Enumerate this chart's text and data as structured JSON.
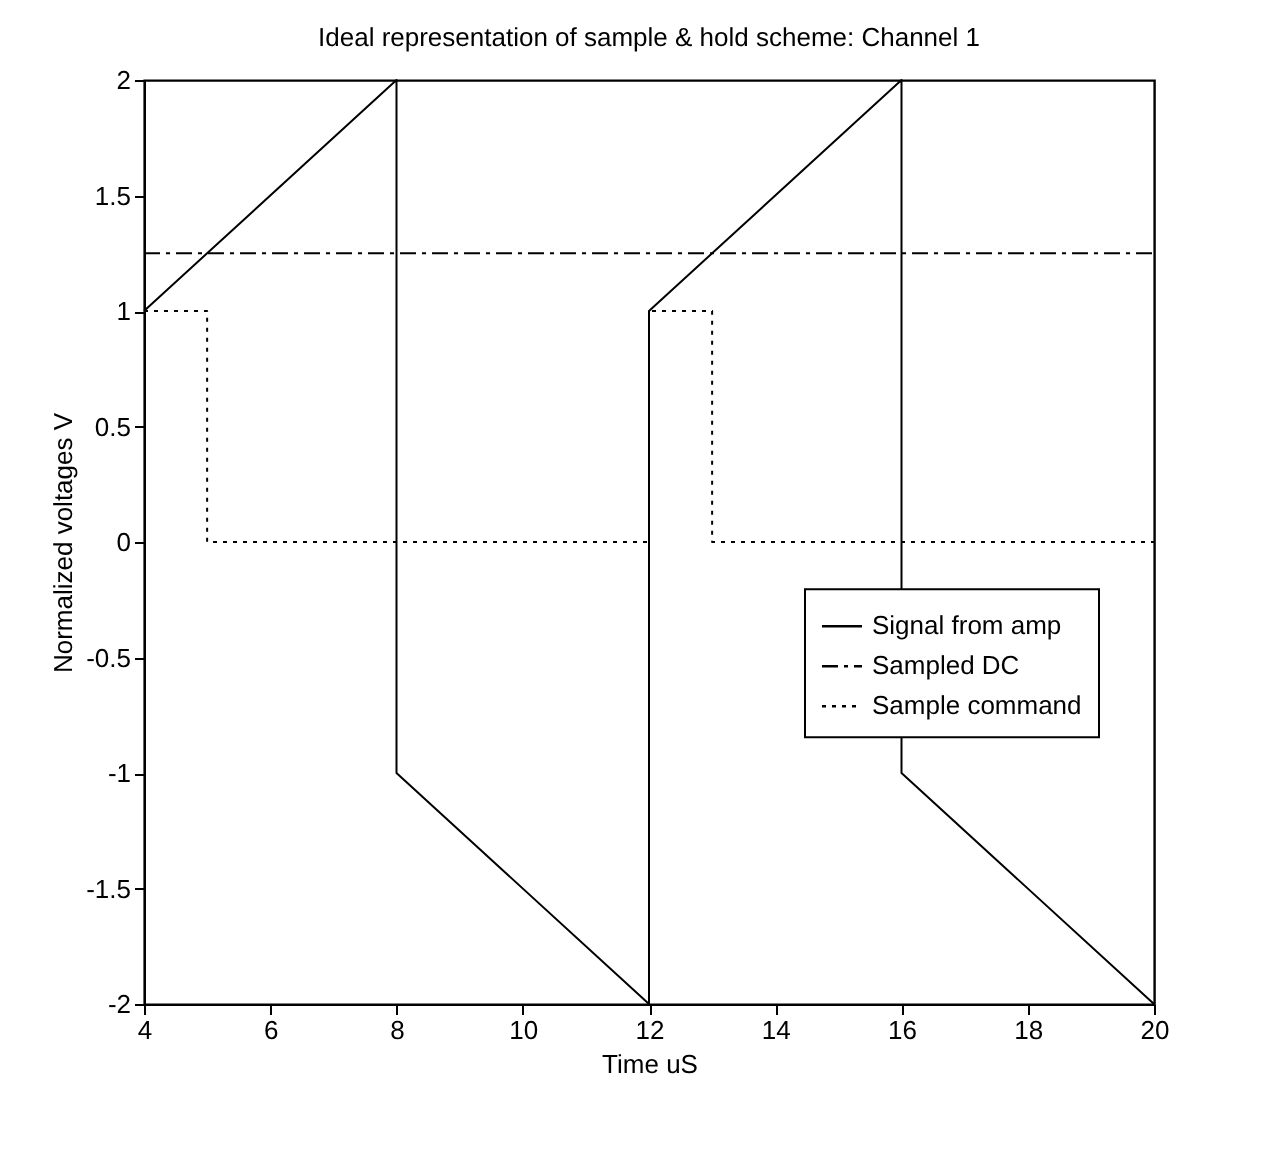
{
  "chart_data": {
    "type": "line",
    "title": "Ideal representation of sample & hold scheme: Channel 1",
    "xlabel": "Time uS",
    "ylabel": "Normalized voltages V",
    "xlim": [
      4,
      20
    ],
    "xticks": [
      4,
      6,
      8,
      10,
      12,
      14,
      16,
      18,
      20
    ],
    "ylim": [
      -2,
      2
    ],
    "yticks": [
      -2,
      -1.5,
      -1,
      -0.5,
      0,
      0.5,
      1,
      1.5,
      2
    ],
    "grid": false,
    "legend": "right",
    "marker": "none",
    "series": [
      {
        "name": "Signal from amp",
        "color": "#000000",
        "line_style": "solid",
        "x": [
          4,
          8,
          8,
          12,
          12,
          16,
          16,
          20
        ],
        "values": [
          1,
          2,
          -1,
          -2,
          1,
          2,
          -1,
          -2
        ]
      },
      {
        "name": "Sampled DC",
        "color": "#000000",
        "line_style": "dashed",
        "x": [
          4,
          20
        ],
        "values": [
          1.25,
          1.25
        ]
      },
      {
        "name": "Sample command",
        "color": "#000000",
        "line_style": "dotted",
        "x": [
          4,
          5,
          5,
          12,
          12,
          13,
          13,
          20
        ],
        "values": [
          1,
          1,
          0,
          0,
          1,
          1,
          0,
          0
        ]
      }
    ]
  }
}
